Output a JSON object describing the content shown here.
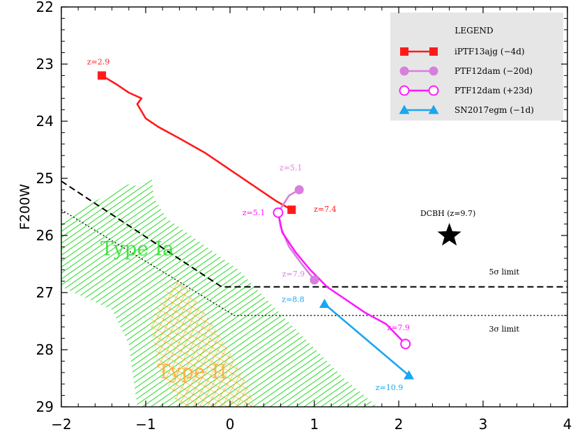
{
  "chart_data": {
    "type": "line",
    "xlim": [
      -2,
      4
    ],
    "ylim": [
      29,
      22
    ],
    "y_inverted": true,
    "ylabel": "F200W",
    "xlabel": "",
    "x_ticks": [
      "−2",
      "−1",
      "0",
      "1",
      "2",
      "3",
      "4"
    ],
    "y_ticks": [
      "22",
      "23",
      "24",
      "25",
      "26",
      "27",
      "28",
      "29"
    ],
    "legend": {
      "title": "LEGEND",
      "position": "top-right",
      "entries": [
        {
          "label": "iPTF13ajg (−4d)",
          "color": "#ff1a1a",
          "marker": "filled-square"
        },
        {
          "label": "PTF12dam (−20d)",
          "color": "#d77fdc",
          "marker": "filled-circle"
        },
        {
          "label": "PTF12dam (+23d)",
          "color": "#ff1aff",
          "marker": "open-circle"
        },
        {
          "label": "SN2017egm (−1d)",
          "color": "#1aa6f0",
          "marker": "filled-triangle"
        }
      ]
    },
    "series": [
      {
        "name": "iPTF13ajg (−4d)",
        "color": "#ff1a1a",
        "marker": "filled-square",
        "x": [
          -1.52,
          -1.35,
          -1.2,
          -1.05,
          -1.1,
          -1.0,
          -0.85,
          -0.6,
          -0.3,
          0.0,
          0.3,
          0.55,
          0.73
        ],
        "y": [
          23.2,
          23.35,
          23.5,
          23.6,
          23.7,
          23.95,
          24.1,
          24.3,
          24.55,
          24.85,
          25.15,
          25.4,
          25.55
        ],
        "endpoint_labels": [
          "z=2.9",
          "z=7.4"
        ]
      },
      {
        "name": "PTF12dam (−20d)",
        "color": "#d77fdc",
        "marker": "filled-circle",
        "x": [
          0.82,
          0.7,
          0.57,
          0.6,
          0.7,
          0.85,
          1.0
        ],
        "y": [
          25.2,
          25.3,
          25.6,
          25.85,
          26.2,
          26.5,
          26.78
        ],
        "endpoint_labels": [
          "z=5.1",
          "z=7.9"
        ]
      },
      {
        "name": "PTF12dam (+23d)",
        "color": "#ff1aff",
        "marker": "open-circle",
        "x": [
          0.57,
          0.62,
          0.78,
          0.95,
          1.15,
          1.35,
          1.6,
          1.85,
          2.08
        ],
        "y": [
          25.6,
          25.95,
          26.3,
          26.6,
          26.9,
          27.1,
          27.35,
          27.55,
          27.9
        ],
        "endpoint_labels": [
          "z=5.1",
          "z=7.9"
        ]
      },
      {
        "name": "SN2017egm (−1d)",
        "color": "#1aa6f0",
        "marker": "filled-triangle",
        "x": [
          1.12,
          2.12
        ],
        "y": [
          27.2,
          28.45
        ],
        "endpoint_labels": [
          "z=8.8",
          "z=10.9"
        ]
      }
    ],
    "point_marker": {
      "label": "DCBH (z=9.7)",
      "x": 2.6,
      "y": 26.0,
      "marker": "star",
      "color": "#000000"
    },
    "limit_lines": [
      {
        "label": "5σ limit",
        "style": "dashed",
        "x": [
          -2.0,
          -0.1,
          4.0
        ],
        "y": [
          25.05,
          26.9,
          26.9
        ]
      },
      {
        "label": "3σ limit",
        "style": "dotted",
        "x": [
          -2.0,
          0.05,
          4.0
        ],
        "y": [
          25.55,
          27.4,
          27.4
        ]
      }
    ],
    "regions": [
      {
        "label": "Type Ia",
        "color": "#33dd33",
        "hatch": "diagonal",
        "polygon_x": [
          -2.0,
          -1.6,
          -1.2,
          -1.05,
          -0.93,
          -0.9,
          -0.75,
          0.1,
          0.55,
          0.95,
          1.35,
          1.75,
          -1.1,
          -1.2,
          -1.4,
          -2.0
        ],
        "polygon_y": [
          25.75,
          25.4,
          25.1,
          25.15,
          25.0,
          25.35,
          25.7,
          26.6,
          27.3,
          27.9,
          28.5,
          29.0,
          29.0,
          27.9,
          27.3,
          26.9
        ]
      },
      {
        "label": "Type II",
        "color": "#ffaa33",
        "hatch": "cross",
        "polygon_x": [
          -0.75,
          -0.6,
          -0.45,
          -0.25,
          0.0,
          0.15,
          0.3,
          -0.2,
          -0.6,
          -0.85,
          -0.95
        ],
        "polygon_y": [
          26.95,
          26.75,
          27.05,
          27.45,
          28.05,
          28.45,
          29.0,
          29.0,
          29.0,
          28.3,
          27.5
        ]
      }
    ]
  }
}
